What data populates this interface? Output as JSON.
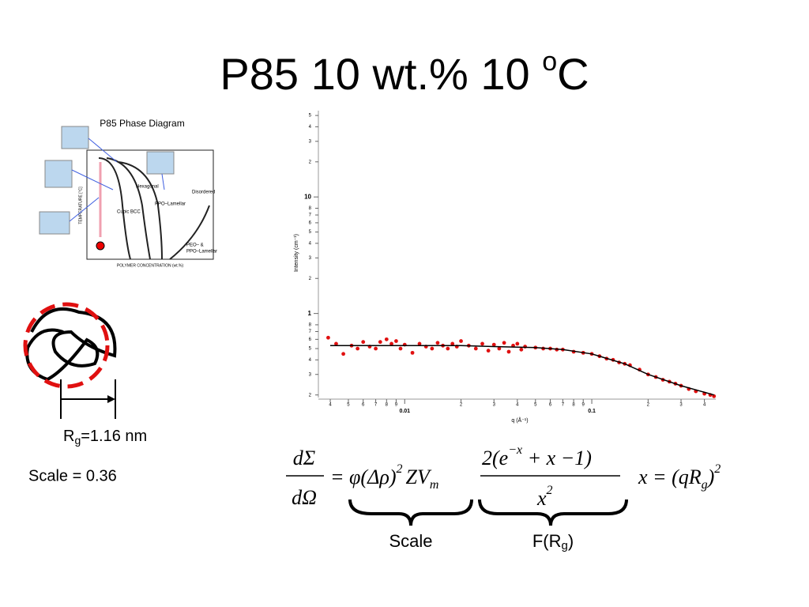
{
  "slide": {
    "title": "P85 10 wt.% 10 ",
    "title_sup": "o",
    "title_end": "C",
    "phase": {
      "caption": "P85 Phase Diagram",
      "hex": "Hexagonal",
      "bcc": "Cubic BCC",
      "ppo": "PPO–Lamellar",
      "dis": "Disordered",
      "peo1": "PEO– &",
      "peo2": "PPO–Lamellar",
      "xlabel": "POLYMER CONCENTRATION (wt.%)",
      "ylabel": "TEMPERATURE [°C]"
    },
    "rg": {
      "r": "R",
      "sub": "g",
      "rest": "=1.16 nm"
    },
    "scale": "Scale = 0.36",
    "eq": {
      "num": "dΣ",
      "den": "dΩ",
      "phi": "= φ(Δρ)",
      "sq1": "2",
      "zv": "ZV",
      "m": "m",
      "f2": "2(e",
      "ex": "−x",
      "fr": " + x −1)",
      "fx": "x",
      "fx2": "2",
      "xe": "x = (qR",
      "xg": "g",
      "xc": ")",
      "x2": "2"
    },
    "brace1": "Scale",
    "brace2a": "F(R",
    "brace2b": "g",
    "brace2c": ")"
  },
  "chart_data": {
    "type": "scatter",
    "log_x": true,
    "log_y": true,
    "xlabel": "q (Å⁻¹)",
    "ylabel": "Intensity (cm⁻¹)",
    "xlim": [
      0.0037,
      0.46
    ],
    "ylim": [
      0.19,
      55
    ],
    "xticks": [
      {
        "value": 0.004,
        "label": "4"
      },
      {
        "value": 0.005,
        "label": "5"
      },
      {
        "value": 0.006,
        "label": "6"
      },
      {
        "value": 0.007,
        "label": "7"
      },
      {
        "value": 0.008,
        "label": "8"
      },
      {
        "value": 0.009,
        "label": "9"
      },
      0.01,
      {
        "value": 0.02,
        "label": "2"
      },
      {
        "value": 0.03,
        "label": "3"
      },
      {
        "value": 0.04,
        "label": "4"
      },
      {
        "value": 0.05,
        "label": "5"
      },
      {
        "value": 0.06,
        "label": "6"
      },
      {
        "value": 0.07,
        "label": "7"
      },
      {
        "value": 0.08,
        "label": "8"
      },
      {
        "value": 0.09,
        "label": "9"
      },
      0.1,
      {
        "value": 0.2,
        "label": "2"
      },
      {
        "value": 0.3,
        "label": "3"
      },
      {
        "value": 0.4,
        "label": "4"
      }
    ],
    "yticks": [
      {
        "value": 0.2,
        "label": "2"
      },
      {
        "value": 0.3,
        "label": "3"
      },
      {
        "value": 0.4,
        "label": "4"
      },
      {
        "value": 0.5,
        "label": "5"
      },
      {
        "value": 0.6,
        "label": "6"
      },
      {
        "value": 0.7,
        "label": "7"
      },
      {
        "value": 0.8,
        "label": "8"
      },
      1,
      {
        "value": 2,
        "label": "2"
      },
      {
        "value": 3,
        "label": "3"
      },
      {
        "value": 4,
        "label": "4"
      },
      {
        "value": 5,
        "label": "5"
      },
      {
        "value": 6,
        "label": "6"
      },
      {
        "value": 7,
        "label": "7"
      },
      {
        "value": 8,
        "label": "8"
      },
      10,
      {
        "value": 20,
        "label": "2"
      },
      {
        "value": 30,
        "label": "3"
      },
      {
        "value": 40,
        "label": "4"
      },
      {
        "value": 50,
        "label": "5"
      }
    ],
    "series": [
      {
        "name": "data",
        "color": "#e01010",
        "x": [
          0.0039,
          0.0043,
          0.0047,
          0.0052,
          0.0056,
          0.006,
          0.0065,
          0.007,
          0.0074,
          0.008,
          0.0085,
          0.009,
          0.0095,
          0.01,
          0.011,
          0.012,
          0.013,
          0.014,
          0.015,
          0.016,
          0.017,
          0.018,
          0.019,
          0.02,
          0.022,
          0.024,
          0.026,
          0.028,
          0.03,
          0.032,
          0.034,
          0.036,
          0.038,
          0.04,
          0.042,
          0.044,
          0.05,
          0.055,
          0.06,
          0.065,
          0.07,
          0.08,
          0.09,
          0.1,
          0.11,
          0.12,
          0.13,
          0.14,
          0.15,
          0.16,
          0.18,
          0.2,
          0.22,
          0.24,
          0.26,
          0.28,
          0.3,
          0.33,
          0.36,
          0.4,
          0.43,
          0.45
        ],
        "values": [
          0.62,
          0.55,
          0.45,
          0.53,
          0.5,
          0.57,
          0.52,
          0.5,
          0.57,
          0.6,
          0.55,
          0.58,
          0.5,
          0.54,
          0.46,
          0.55,
          0.52,
          0.5,
          0.56,
          0.53,
          0.5,
          0.55,
          0.52,
          0.58,
          0.53,
          0.5,
          0.55,
          0.48,
          0.54,
          0.5,
          0.56,
          0.47,
          0.53,
          0.55,
          0.49,
          0.52,
          0.51,
          0.5,
          0.5,
          0.49,
          0.49,
          0.47,
          0.46,
          0.45,
          0.43,
          0.41,
          0.4,
          0.38,
          0.37,
          0.36,
          0.33,
          0.3,
          0.285,
          0.27,
          0.26,
          0.25,
          0.24,
          0.225,
          0.215,
          0.205,
          0.2,
          0.195
        ]
      },
      {
        "name": "fit",
        "color": "#000000",
        "line": true,
        "x": [
          0.004,
          0.01,
          0.02,
          0.03,
          0.05,
          0.07,
          0.1,
          0.15,
          0.2,
          0.3,
          0.45
        ],
        "values": [
          0.53,
          0.53,
          0.53,
          0.52,
          0.51,
          0.49,
          0.45,
          0.37,
          0.3,
          0.24,
          0.2
        ]
      }
    ]
  }
}
